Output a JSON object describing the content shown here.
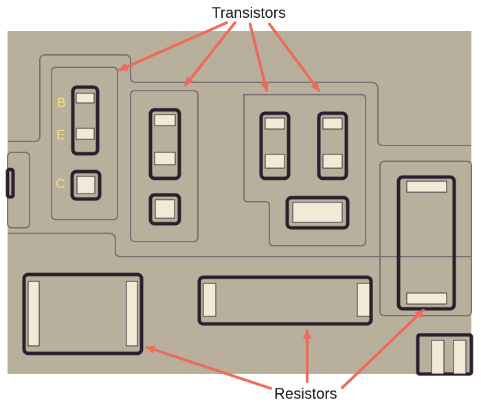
{
  "callouts": {
    "top_label": "Transistors",
    "bottom_label": "Resistors"
  },
  "terminal_labels": {
    "base": "B",
    "emitter": "E",
    "collector": "C"
  },
  "colors": {
    "substrate": "#b8b09c",
    "region_outline": "#7c6f72",
    "component_border": "#2a1f2e",
    "pad_fill": "#f2ead6",
    "arrow": "#ee6a5a",
    "terminal_label": "#f6e27a"
  }
}
